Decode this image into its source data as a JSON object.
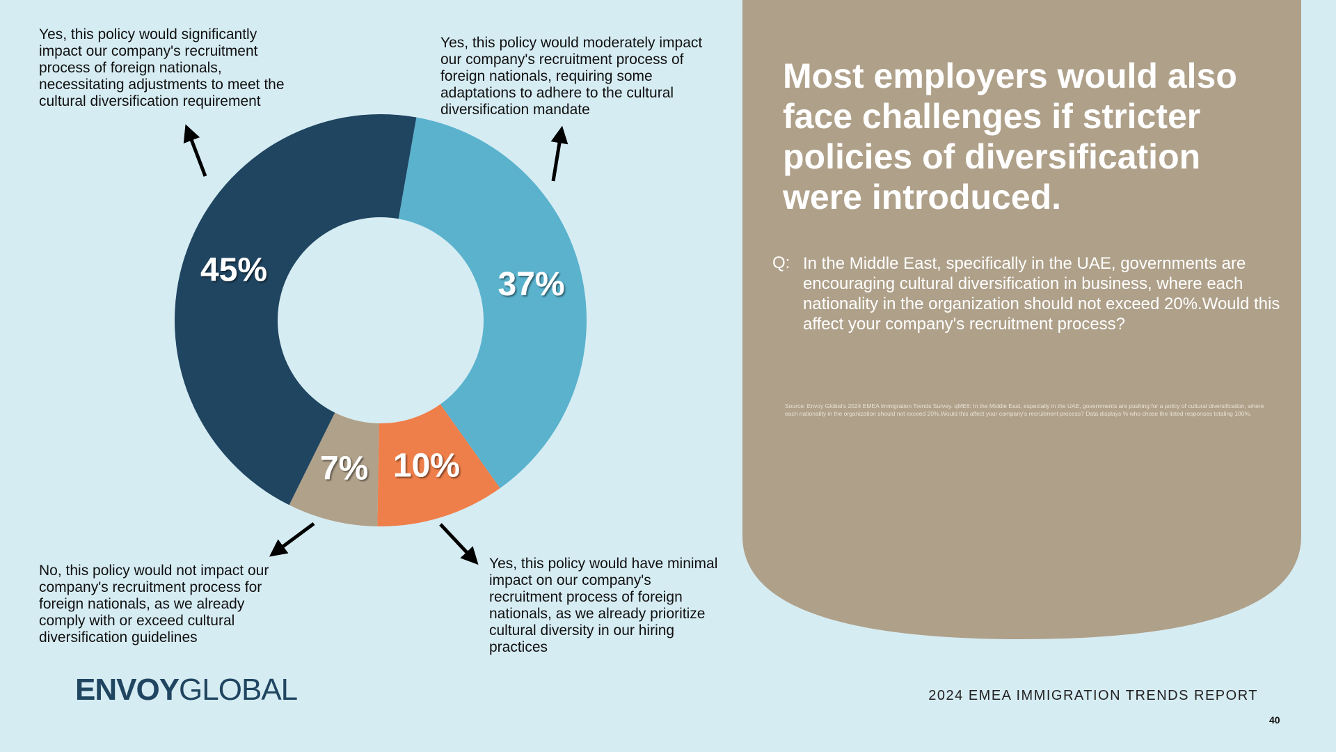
{
  "chart_data": {
    "type": "pie",
    "categories": [
      "Yes, this policy would moderately impact our company's recruitment process of foreign nationals, requiring some adaptations to adhere to the cultural diversification mandate",
      "Yes, this policy would have minimal impact on our company's recruitment process of foreign nationals, as we already prioritize cultural diversity in our hiring practices",
      "No, this policy would not impact our company's recruitment process for foreign nationals, as we already comply with or exceed cultural diversification guidelines",
      "Yes, this policy would significantly impact our company's recruitment process of foreign nationals, necessitating adjustments to meet the cultural diversification requirement"
    ],
    "values": [
      37,
      10,
      7,
      45
    ],
    "value_labels": [
      "37%",
      "10%",
      "7%",
      "45%"
    ],
    "colors": [
      "#5ab2cd",
      "#ef7f4a",
      "#b0a18a",
      "#1f4560"
    ],
    "donut": true
  },
  "panel": {
    "headline": "Most employers would also face challenges if stricter policies of diversification were introduced.",
    "question_marker": "Q:",
    "question": "In the Middle East, specifically in the UAE, governments are encouraging cultural diversification in business, where each nationality in the organization should not exceed 20%.Would this affect your company's recruitment process?",
    "source": "Source: Envoy Global's 2024 EMEA Immigration Trends Survey. qME6: In the Middle East, especially in the UAE, governments are pushing for a policy of cultural diversification, where each nationality in the organization should not exceed 20%.Would this affect your company's recruitment process? Data displays % who chose the listed responses totaling 100%."
  },
  "footer": {
    "logo_bold": "ENVOY",
    "logo_light": "GLOBAL",
    "report": "2024 EMEA IMMIGRATION TRENDS REPORT",
    "page": "40"
  }
}
